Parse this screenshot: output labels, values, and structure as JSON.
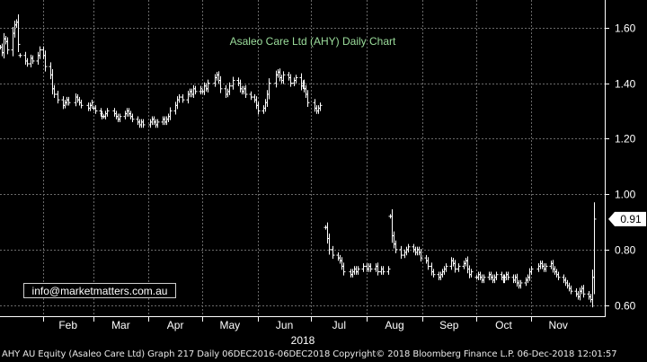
{
  "chart_data": {
    "type": "bar",
    "style": "ohlc",
    "title": "Asaleo Care Ltd (AHY) Daily Chart",
    "watermark": "info@marketmatters.com.au",
    "y_ticks": [
      "1.60",
      "1.40",
      "1.20",
      "1.00",
      "0.80",
      "0.60"
    ],
    "ylim": [
      0.56,
      1.7
    ],
    "months": [
      "Feb",
      "Mar",
      "Apr",
      "May",
      "Jun",
      "Jul",
      "Aug",
      "Sep",
      "Oct",
      "Nov"
    ],
    "year_label": "2018",
    "last_price": "0.91",
    "grid": true,
    "colors": {
      "background": "#000000",
      "bars": "#ffffff",
      "grid": "#6a6a6a",
      "title": "#9bdc9b"
    },
    "segments": [
      {
        "from": "2018-01-08",
        "to": "2018-01-18",
        "values": [
          1.53,
          1.51,
          1.56,
          1.55,
          1.52,
          1.58,
          1.61,
          1.62,
          1.54
        ]
      },
      {
        "from": "2018-01-19",
        "to": "2018-02-28",
        "values": [
          1.5,
          1.48,
          1.47,
          1.49,
          1.48,
          1.5,
          1.52,
          1.5,
          1.46,
          1.43,
          1.38,
          1.36,
          1.34,
          1.32,
          1.33,
          1.34,
          1.33,
          1.35,
          1.34,
          1.33,
          1.32,
          1.31,
          1.32,
          1.33
        ]
      },
      {
        "from": "2018-03-01",
        "to": "2018-04-30",
        "values": [
          1.31,
          1.3,
          1.29,
          1.28,
          1.28,
          1.29,
          1.3,
          1.29,
          1.28,
          1.27,
          1.28,
          1.29,
          1.3,
          1.29,
          1.28,
          1.27,
          1.26,
          1.25,
          1.26,
          1.25,
          1.26,
          1.27,
          1.26,
          1.25,
          1.26,
          1.27,
          1.26,
          1.27,
          1.28,
          1.3,
          1.32,
          1.34,
          1.35,
          1.34,
          1.36,
          1.37,
          1.36,
          1.38,
          1.37,
          1.38
        ]
      },
      {
        "from": "2018-05-01",
        "to": "2018-07-06",
        "values": [
          1.37,
          1.39,
          1.38,
          1.4,
          1.42,
          1.43,
          1.41,
          1.38,
          1.36,
          1.37,
          1.39,
          1.41,
          1.4,
          1.38,
          1.37,
          1.38,
          1.36,
          1.35,
          1.34,
          1.32,
          1.3,
          1.31,
          1.33,
          1.36,
          1.4,
          1.43,
          1.44,
          1.42,
          1.41,
          1.43,
          1.42,
          1.4,
          1.41,
          1.42,
          1.39,
          1.4,
          1.38,
          1.36,
          1.33,
          1.31,
          1.3,
          1.31,
          1.32
        ]
      },
      {
        "from": "2018-07-09",
        "to": "2018-08-13",
        "values": [
          0.88,
          0.84,
          0.8,
          0.78,
          0.77,
          0.76,
          0.74,
          0.72,
          0.71,
          0.72,
          0.73,
          0.72,
          0.73,
          0.74,
          0.73,
          0.74,
          0.73,
          0.74,
          0.72,
          0.73,
          0.72,
          0.73
        ]
      },
      {
        "from": "2018-08-14",
        "to": "2018-09-28",
        "values": [
          0.92,
          0.85,
          0.82,
          0.8,
          0.78,
          0.79,
          0.8,
          0.81,
          0.8,
          0.79,
          0.8,
          0.79,
          0.77,
          0.76,
          0.74,
          0.72,
          0.71,
          0.7,
          0.71,
          0.72,
          0.73,
          0.74,
          0.76,
          0.75,
          0.73,
          0.74,
          0.75,
          0.76,
          0.73,
          0.71,
          0.72
        ]
      },
      {
        "from": "2018-10-01",
        "to": "2018-12-06",
        "values": [
          0.7,
          0.71,
          0.7,
          0.69,
          0.7,
          0.71,
          0.7,
          0.69,
          0.7,
          0.71,
          0.7,
          0.69,
          0.7,
          0.71,
          0.7,
          0.69,
          0.7,
          0.68,
          0.67,
          0.68,
          0.69,
          0.7,
          0.72,
          0.73,
          0.74,
          0.75,
          0.74,
          0.73,
          0.74,
          0.75,
          0.73,
          0.72,
          0.71,
          0.7,
          0.69,
          0.68,
          0.67,
          0.66,
          0.65,
          0.64,
          0.63,
          0.65,
          0.66,
          0.64,
          0.63,
          0.62,
          0.7,
          0.91
        ]
      }
    ]
  },
  "footer": {
    "text": "AHY AU Equity (Asaleo Care Ltd) Graph 217  Daily 06DEC2016-06DEC2018 Copyright© 2018 Bloomberg Finance L.P.  06-Dec-2018 12:01:57"
  }
}
